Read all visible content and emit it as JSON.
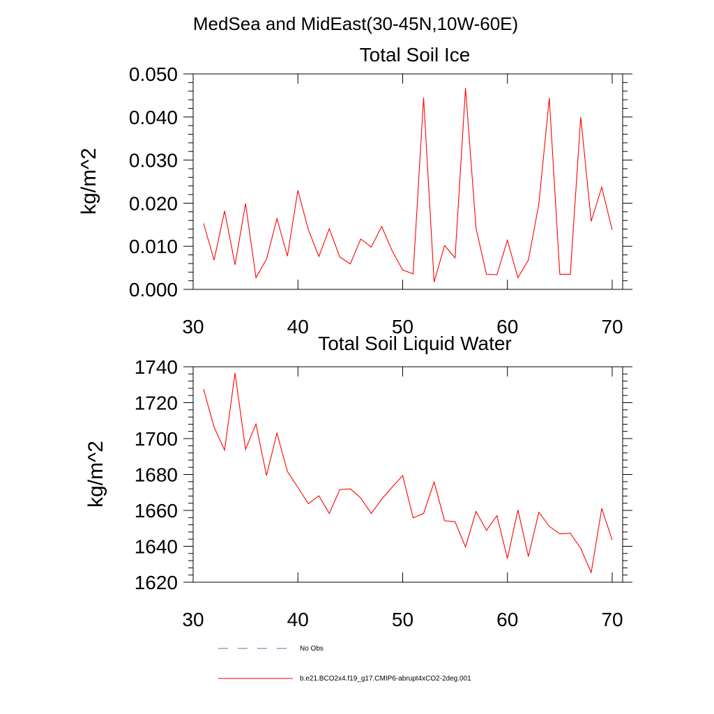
{
  "figure": {
    "title": "MedSea and MidEast(30-45N,10W-60E)"
  },
  "chart_data": [
    {
      "type": "line",
      "title": "Total Soil Ice",
      "xlabel": "",
      "ylabel": "kg/m^2",
      "xlim": [
        30,
        71
      ],
      "ylim": [
        0,
        0.05
      ],
      "xticks": [
        30,
        40,
        50,
        60,
        70
      ],
      "yticks": [
        0,
        0.01,
        0.02,
        0.03,
        0.04,
        0.05
      ],
      "ytick_labels": [
        "0.000",
        "0.010",
        "0.020",
        "0.030",
        "0.040",
        "0.050"
      ],
      "series": [
        {
          "name": "b.e21.BCO2x4.f19_g17.CMIP6-abrupt4xCO2-2deg.001",
          "color": "#ff0000",
          "x": [
            31,
            32,
            33,
            34,
            35,
            36,
            37,
            38,
            39,
            40,
            41,
            42,
            43,
            44,
            45,
            46,
            47,
            48,
            49,
            50,
            51,
            52,
            53,
            54,
            55,
            56,
            57,
            58,
            59,
            60,
            61,
            62,
            63,
            64,
            65,
            66,
            67,
            68,
            69,
            70
          ],
          "values": [
            0.0153,
            0.0068,
            0.0182,
            0.0057,
            0.0199,
            0.0027,
            0.007,
            0.0164,
            0.0077,
            0.023,
            0.0138,
            0.0076,
            0.0141,
            0.0075,
            0.0059,
            0.0117,
            0.0098,
            0.0146,
            0.0089,
            0.0045,
            0.0036,
            0.0445,
            0.0017,
            0.0102,
            0.0073,
            0.0467,
            0.0142,
            0.0035,
            0.0034,
            0.0114,
            0.0027,
            0.0068,
            0.0198,
            0.0444,
            0.0035,
            0.0035,
            0.04,
            0.0158,
            0.0237,
            0.0138
          ]
        }
      ]
    },
    {
      "type": "line",
      "title": "Total Soil Liquid Water",
      "xlabel": "",
      "ylabel": "kg/m^2",
      "xlim": [
        30,
        71
      ],
      "ylim": [
        1620,
        1740
      ],
      "xticks": [
        30,
        40,
        50,
        60,
        70
      ],
      "yticks": [
        1620,
        1640,
        1660,
        1680,
        1700,
        1720,
        1740
      ],
      "ytick_labels": [
        "1620",
        "1640",
        "1660",
        "1680",
        "1700",
        "1720",
        "1740"
      ],
      "series": [
        {
          "name": "b.e21.BCO2x4.f19_g17.CMIP6-abrupt4xCO2-2deg.001",
          "color": "#ff0000",
          "x": [
            31,
            32,
            33,
            34,
            35,
            36,
            37,
            38,
            39,
            40,
            41,
            42,
            43,
            44,
            45,
            46,
            47,
            48,
            49,
            50,
            51,
            52,
            53,
            54,
            55,
            56,
            57,
            58,
            59,
            60,
            61,
            62,
            63,
            64,
            65,
            66,
            67,
            68,
            69,
            70
          ],
          "values": [
            1727.5,
            1706.4,
            1693.6,
            1736.5,
            1694.0,
            1708.1,
            1679.4,
            1703.0,
            1681.7,
            1672.8,
            1663.7,
            1668.1,
            1658.3,
            1671.6,
            1672.0,
            1666.9,
            1658.3,
            1666.2,
            1673.0,
            1679.4,
            1655.9,
            1658.3,
            1675.8,
            1654.2,
            1653.7,
            1639.7,
            1659.4,
            1648.9,
            1657.1,
            1633.2,
            1660.3,
            1634.3,
            1659.0,
            1651.1,
            1646.9,
            1647.3,
            1638.8,
            1625.4,
            1661.1,
            1643.5
          ]
        }
      ]
    }
  ],
  "legend": [
    {
      "label": "No Obs",
      "style": "dashed",
      "color": "#6a6aa8"
    },
    {
      "label": "b.e21.BCO2x4.f19_g17.CMIP6-abrupt4xCO2-2deg.001",
      "style": "solid",
      "color": "#ff0000"
    }
  ]
}
